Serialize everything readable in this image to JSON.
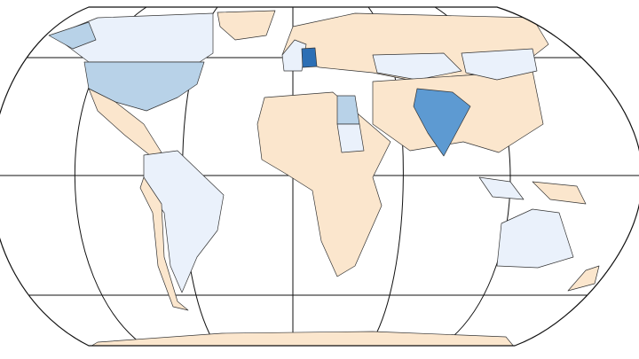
{
  "map": {
    "colors": {
      "none": "#fbe6cd",
      "low": "#eaf1fb",
      "mid": "#b8d2e8",
      "high": "#5d9ad2",
      "top": "#2c6fb5"
    }
  }
}
